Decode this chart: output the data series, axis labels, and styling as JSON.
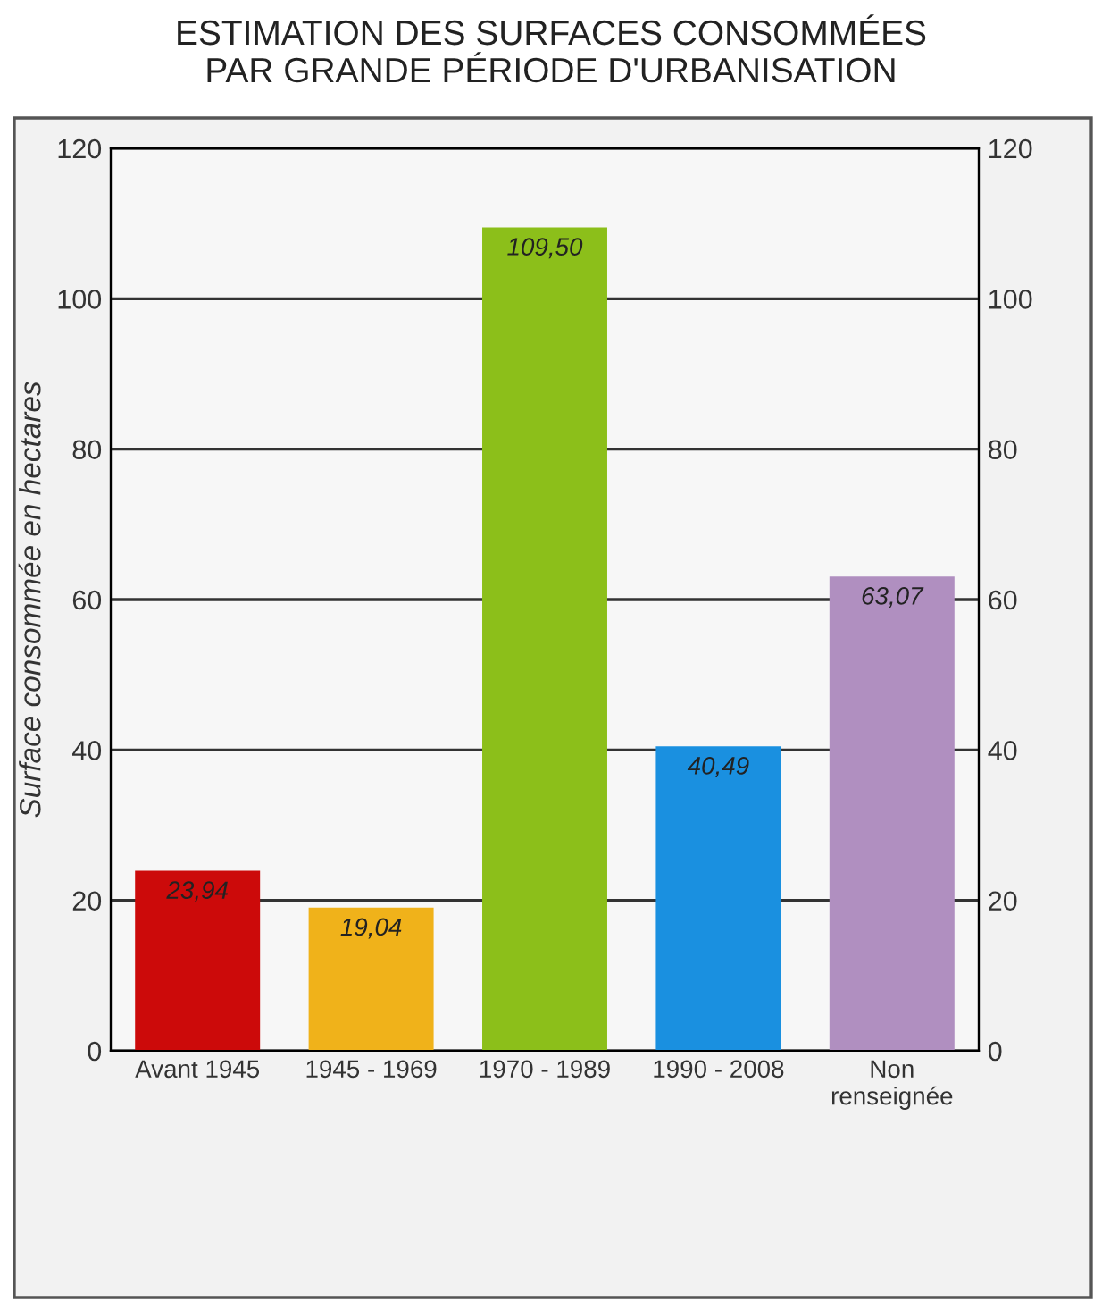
{
  "chart_data": {
    "type": "bar",
    "title": "ESTIMATION DES SURFACES CONSOMMÉES\nPAR GRANDE PÉRIODE D'URBANISATION",
    "ylabel": "Surface consommée en hectares",
    "categories": [
      "Avant 1945",
      "1945 - 1969",
      "1970 - 1989",
      "1990 - 2008",
      "Non\nrenseignée"
    ],
    "values": [
      23.94,
      19.04,
      109.5,
      40.49,
      63.07
    ],
    "colors": [
      "#cc0a0a",
      "#f0b21a",
      "#8cbf1a",
      "#1a90e0",
      "#b08fc0"
    ],
    "value_labels": [
      "23,94",
      "19,04",
      "109,50",
      "40,49",
      "63,07"
    ],
    "ylim": [
      0,
      120
    ],
    "yticks": [
      0,
      20,
      40,
      60,
      80,
      100,
      120
    ],
    "y2lim": [
      0,
      120
    ],
    "y2ticks": [
      0,
      20,
      40,
      60,
      80,
      100,
      120
    ],
    "grid": "y"
  }
}
